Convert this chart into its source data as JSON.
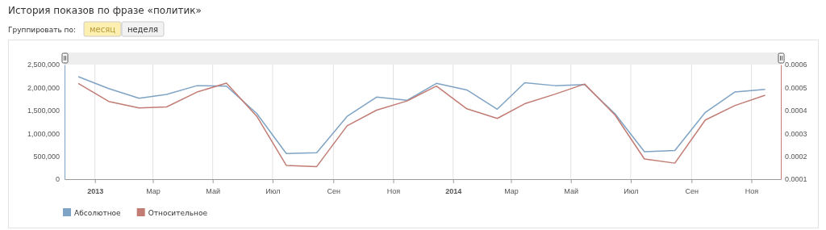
{
  "chart_data": {
    "type": "line",
    "title": "История показов по фразе «политик»",
    "annotations": [
      "Группировать по:",
      "месяц",
      "неделя"
    ],
    "x": [
      "2012-12-15",
      "2013-01-15",
      "2013-02-15",
      "2013-03-15",
      "2013-04-15",
      "2013-05-15",
      "2013-06-15",
      "2013-07-15",
      "2013-08-15",
      "2013-09-15",
      "2013-10-15",
      "2013-11-15",
      "2013-12-15",
      "2014-01-15",
      "2014-02-15",
      "2014-03-15",
      "2014-04-15",
      "2014-05-15",
      "2014-06-15",
      "2014-07-15",
      "2014-08-15",
      "2014-09-15",
      "2014-10-15",
      "2014-11-15"
    ],
    "series": [
      {
        "name": "Абсолютное",
        "color": "#7fa3c4",
        "values": [
          2235000,
          1976000,
          1765000,
          1847000,
          2040000,
          2030000,
          1430000,
          560000,
          576000,
          1370000,
          1790000,
          1720000,
          2090000,
          1946000,
          1527000,
          2105000,
          2040000,
          2064000,
          1427000,
          600000,
          625000,
          1456000,
          1900000,
          1960000
        ]
      },
      {
        "name": "Относительное",
        "color": "#c27c74",
        "axis": "y2",
        "values": [
          0.000518,
          0.000439,
          0.000411,
          0.000415,
          0.00048,
          0.000519,
          0.000374,
          0.00016,
          0.000155,
          0.000333,
          0.000401,
          0.000441,
          0.000506,
          0.000407,
          0.000365,
          0.000429,
          0.000471,
          0.000515,
          0.00038,
          0.000188,
          0.00017,
          0.000358,
          0.000421,
          0.000466
        ]
      }
    ],
    "xlim": [
      "2012-12-01",
      "2014-12-01"
    ],
    "xticks": [
      {
        "value": "2013-01-01",
        "label": "2013"
      },
      {
        "value": "2013-03-01",
        "label": "Мар"
      },
      {
        "value": "2013-05-01",
        "label": "Май"
      },
      {
        "value": "2013-07-01",
        "label": "Июл"
      },
      {
        "value": "2013-09-01",
        "label": "Сен"
      },
      {
        "value": "2013-11-01",
        "label": "Ноя"
      },
      {
        "value": "2014-01-01",
        "label": "2014"
      },
      {
        "value": "2014-03-01",
        "label": "Мар"
      },
      {
        "value": "2014-05-01",
        "label": "Май"
      },
      {
        "value": "2014-07-01",
        "label": "Июл"
      },
      {
        "value": "2014-09-01",
        "label": "Сен"
      },
      {
        "value": "2014-11-01",
        "label": "Ноя"
      }
    ],
    "ylim": [
      0,
      2500000
    ],
    "yticks": [
      {
        "value": 0,
        "label": "0"
      },
      {
        "value": 500000,
        "label": "500,000"
      },
      {
        "value": 1000000,
        "label": "1,000,000"
      },
      {
        "value": 1500000,
        "label": "1,500,000"
      },
      {
        "value": 2000000,
        "label": "2,000,000"
      },
      {
        "value": 2500000,
        "label": "2,500,000"
      }
    ],
    "y2lim": [
      0.0001,
      0.0006
    ],
    "y2ticks": [
      0.0001,
      0.0002,
      0.0003,
      0.0004,
      0.0005,
      0.0006
    ],
    "grid": "x",
    "legend": "bottom left",
    "marker": "none",
    "line_style": "solid"
  }
}
